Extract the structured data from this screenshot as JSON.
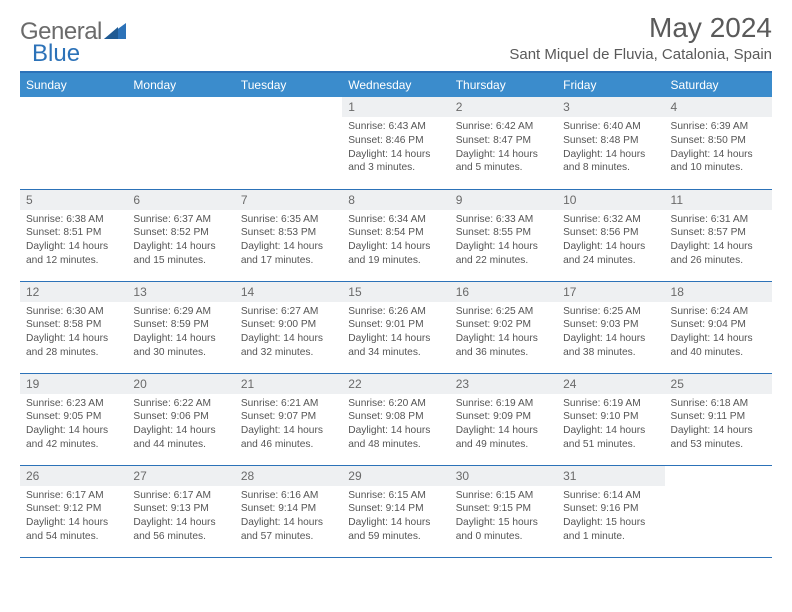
{
  "colors": {
    "header_bg": "#3b8ccc",
    "border": "#2c72b8",
    "daynum_bg": "#eef0f2",
    "text": "#555555",
    "title": "#5a5a5a",
    "logo_gray": "#6b6b6b",
    "logo_blue": "#2c72b8"
  },
  "logo": {
    "part1": "General",
    "part2": "Blue"
  },
  "title": "May 2024",
  "location": "Sant Miquel de Fluvia, Catalonia, Spain",
  "weekdays": [
    "Sunday",
    "Monday",
    "Tuesday",
    "Wednesday",
    "Thursday",
    "Friday",
    "Saturday"
  ],
  "weeks": [
    [
      null,
      null,
      null,
      {
        "n": "1",
        "lines": [
          "Sunrise: 6:43 AM",
          "Sunset: 8:46 PM",
          "Daylight: 14 hours",
          "and 3 minutes."
        ]
      },
      {
        "n": "2",
        "lines": [
          "Sunrise: 6:42 AM",
          "Sunset: 8:47 PM",
          "Daylight: 14 hours",
          "and 5 minutes."
        ]
      },
      {
        "n": "3",
        "lines": [
          "Sunrise: 6:40 AM",
          "Sunset: 8:48 PM",
          "Daylight: 14 hours",
          "and 8 minutes."
        ]
      },
      {
        "n": "4",
        "lines": [
          "Sunrise: 6:39 AM",
          "Sunset: 8:50 PM",
          "Daylight: 14 hours",
          "and 10 minutes."
        ]
      }
    ],
    [
      {
        "n": "5",
        "lines": [
          "Sunrise: 6:38 AM",
          "Sunset: 8:51 PM",
          "Daylight: 14 hours",
          "and 12 minutes."
        ]
      },
      {
        "n": "6",
        "lines": [
          "Sunrise: 6:37 AM",
          "Sunset: 8:52 PM",
          "Daylight: 14 hours",
          "and 15 minutes."
        ]
      },
      {
        "n": "7",
        "lines": [
          "Sunrise: 6:35 AM",
          "Sunset: 8:53 PM",
          "Daylight: 14 hours",
          "and 17 minutes."
        ]
      },
      {
        "n": "8",
        "lines": [
          "Sunrise: 6:34 AM",
          "Sunset: 8:54 PM",
          "Daylight: 14 hours",
          "and 19 minutes."
        ]
      },
      {
        "n": "9",
        "lines": [
          "Sunrise: 6:33 AM",
          "Sunset: 8:55 PM",
          "Daylight: 14 hours",
          "and 22 minutes."
        ]
      },
      {
        "n": "10",
        "lines": [
          "Sunrise: 6:32 AM",
          "Sunset: 8:56 PM",
          "Daylight: 14 hours",
          "and 24 minutes."
        ]
      },
      {
        "n": "11",
        "lines": [
          "Sunrise: 6:31 AM",
          "Sunset: 8:57 PM",
          "Daylight: 14 hours",
          "and 26 minutes."
        ]
      }
    ],
    [
      {
        "n": "12",
        "lines": [
          "Sunrise: 6:30 AM",
          "Sunset: 8:58 PM",
          "Daylight: 14 hours",
          "and 28 minutes."
        ]
      },
      {
        "n": "13",
        "lines": [
          "Sunrise: 6:29 AM",
          "Sunset: 8:59 PM",
          "Daylight: 14 hours",
          "and 30 minutes."
        ]
      },
      {
        "n": "14",
        "lines": [
          "Sunrise: 6:27 AM",
          "Sunset: 9:00 PM",
          "Daylight: 14 hours",
          "and 32 minutes."
        ]
      },
      {
        "n": "15",
        "lines": [
          "Sunrise: 6:26 AM",
          "Sunset: 9:01 PM",
          "Daylight: 14 hours",
          "and 34 minutes."
        ]
      },
      {
        "n": "16",
        "lines": [
          "Sunrise: 6:25 AM",
          "Sunset: 9:02 PM",
          "Daylight: 14 hours",
          "and 36 minutes."
        ]
      },
      {
        "n": "17",
        "lines": [
          "Sunrise: 6:25 AM",
          "Sunset: 9:03 PM",
          "Daylight: 14 hours",
          "and 38 minutes."
        ]
      },
      {
        "n": "18",
        "lines": [
          "Sunrise: 6:24 AM",
          "Sunset: 9:04 PM",
          "Daylight: 14 hours",
          "and 40 minutes."
        ]
      }
    ],
    [
      {
        "n": "19",
        "lines": [
          "Sunrise: 6:23 AM",
          "Sunset: 9:05 PM",
          "Daylight: 14 hours",
          "and 42 minutes."
        ]
      },
      {
        "n": "20",
        "lines": [
          "Sunrise: 6:22 AM",
          "Sunset: 9:06 PM",
          "Daylight: 14 hours",
          "and 44 minutes."
        ]
      },
      {
        "n": "21",
        "lines": [
          "Sunrise: 6:21 AM",
          "Sunset: 9:07 PM",
          "Daylight: 14 hours",
          "and 46 minutes."
        ]
      },
      {
        "n": "22",
        "lines": [
          "Sunrise: 6:20 AM",
          "Sunset: 9:08 PM",
          "Daylight: 14 hours",
          "and 48 minutes."
        ]
      },
      {
        "n": "23",
        "lines": [
          "Sunrise: 6:19 AM",
          "Sunset: 9:09 PM",
          "Daylight: 14 hours",
          "and 49 minutes."
        ]
      },
      {
        "n": "24",
        "lines": [
          "Sunrise: 6:19 AM",
          "Sunset: 9:10 PM",
          "Daylight: 14 hours",
          "and 51 minutes."
        ]
      },
      {
        "n": "25",
        "lines": [
          "Sunrise: 6:18 AM",
          "Sunset: 9:11 PM",
          "Daylight: 14 hours",
          "and 53 minutes."
        ]
      }
    ],
    [
      {
        "n": "26",
        "lines": [
          "Sunrise: 6:17 AM",
          "Sunset: 9:12 PM",
          "Daylight: 14 hours",
          "and 54 minutes."
        ]
      },
      {
        "n": "27",
        "lines": [
          "Sunrise: 6:17 AM",
          "Sunset: 9:13 PM",
          "Daylight: 14 hours",
          "and 56 minutes."
        ]
      },
      {
        "n": "28",
        "lines": [
          "Sunrise: 6:16 AM",
          "Sunset: 9:14 PM",
          "Daylight: 14 hours",
          "and 57 minutes."
        ]
      },
      {
        "n": "29",
        "lines": [
          "Sunrise: 6:15 AM",
          "Sunset: 9:14 PM",
          "Daylight: 14 hours",
          "and 59 minutes."
        ]
      },
      {
        "n": "30",
        "lines": [
          "Sunrise: 6:15 AM",
          "Sunset: 9:15 PM",
          "Daylight: 15 hours",
          "and 0 minutes."
        ]
      },
      {
        "n": "31",
        "lines": [
          "Sunrise: 6:14 AM",
          "Sunset: 9:16 PM",
          "Daylight: 15 hours",
          "and 1 minute."
        ]
      },
      null
    ]
  ]
}
